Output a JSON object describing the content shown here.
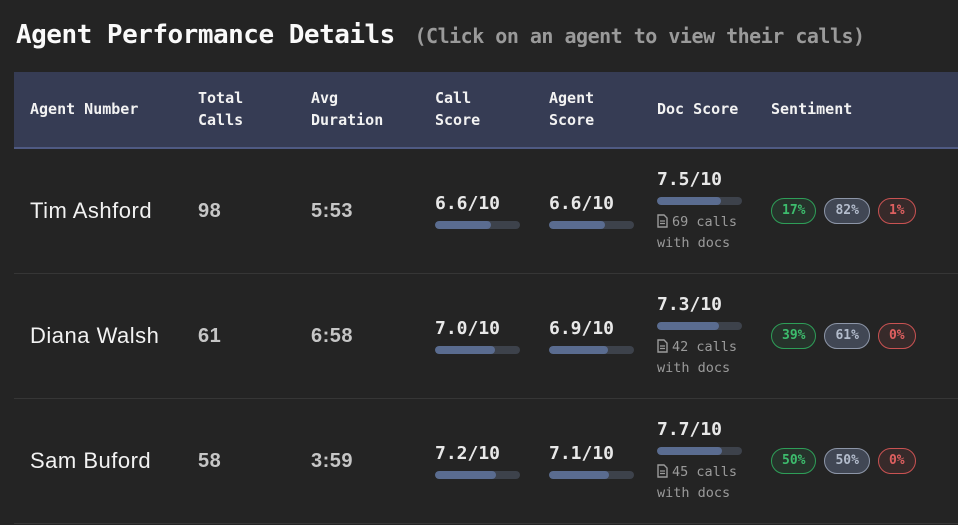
{
  "header": {
    "title": "Agent Performance Details",
    "subtitle": "(Click on an agent to view their calls)"
  },
  "colors": {
    "background": "#242424",
    "table_header_bg": "#363c54",
    "table_header_border": "#4f5a83",
    "bar_fill": "#5a6c90",
    "bar_track": "#3d424b",
    "sentiment_positive": "#3dbd6d",
    "sentiment_neutral": "#b3bccc",
    "sentiment_negative": "#df6060"
  },
  "icons": {
    "doc": "document-icon"
  },
  "table": {
    "columns": [
      "Agent Number",
      "Total Calls",
      "Avg Duration",
      "Call Score",
      "Agent Score",
      "Doc Score",
      "Sentiment"
    ],
    "rows": [
      {
        "agent": "Tim Ashford",
        "total_calls": "98",
        "avg_duration": "5:53",
        "call_score": {
          "label": "6.6/10",
          "pct": 66
        },
        "agent_score": {
          "label": "6.6/10",
          "pct": 66
        },
        "doc_score": {
          "label": "7.5/10",
          "pct": 75,
          "docs_count": "69",
          "docs_label": "calls with docs"
        },
        "sentiment": {
          "positive": "17%",
          "neutral": "82%",
          "negative": "1%"
        }
      },
      {
        "agent": "Diana Walsh",
        "total_calls": "61",
        "avg_duration": "6:58",
        "call_score": {
          "label": "7.0/10",
          "pct": 70
        },
        "agent_score": {
          "label": "6.9/10",
          "pct": 69
        },
        "doc_score": {
          "label": "7.3/10",
          "pct": 73,
          "docs_count": "42",
          "docs_label": "calls with docs"
        },
        "sentiment": {
          "positive": "39%",
          "neutral": "61%",
          "negative": "0%"
        }
      },
      {
        "agent": "Sam Buford",
        "total_calls": "58",
        "avg_duration": "3:59",
        "call_score": {
          "label": "7.2/10",
          "pct": 72
        },
        "agent_score": {
          "label": "7.1/10",
          "pct": 71
        },
        "doc_score": {
          "label": "7.7/10",
          "pct": 77,
          "docs_count": "45",
          "docs_label": "calls with docs"
        },
        "sentiment": {
          "positive": "50%",
          "neutral": "50%",
          "negative": "0%"
        }
      }
    ]
  }
}
